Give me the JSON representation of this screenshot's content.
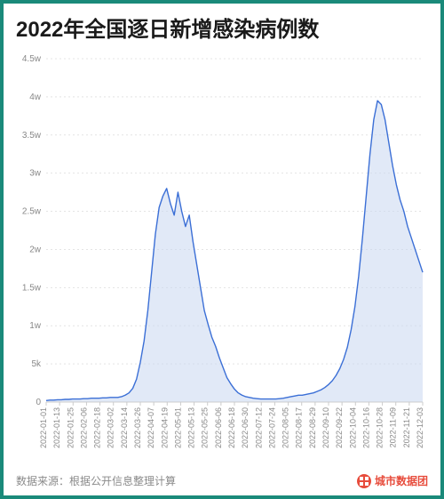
{
  "title": "2022年全国逐日新增感染病例数",
  "source_label": "数据来源：根据公开信息整理计算",
  "brand_label": "城市数据团",
  "brand_color": "#e74c3c",
  "chart": {
    "type": "area-line",
    "line_color": "#3b6fd6",
    "fill_color": "#c8d7f0",
    "fill_opacity": 0.55,
    "line_width": 1.4,
    "background_color": "#ffffff",
    "grid_color": "#e4e4e4",
    "axis_color": "#cccccc",
    "tick_font_color": "#888888",
    "y_axis": {
      "min": 0,
      "max": 45000,
      "ticks": [
        0,
        5000,
        10000,
        15000,
        20000,
        25000,
        30000,
        35000,
        40000,
        45000
      ],
      "tick_labels": [
        "0",
        "5k",
        "1w",
        "1.5w",
        "2w",
        "2.5w",
        "3w",
        "3.5w",
        "4w",
        "4.5w"
      ]
    },
    "x_axis": {
      "tick_labels": [
        "2022-01-01",
        "2022-01-13",
        "2022-01-25",
        "2022-02-06",
        "2022-02-18",
        "2022-03-02",
        "2022-03-14",
        "2022-03-26",
        "2022-04-07",
        "2022-04-19",
        "2022-05-01",
        "2022-05-13",
        "2022-05-25",
        "2022-06-06",
        "2022-06-18",
        "2022-06-30",
        "2022-07-12",
        "2022-07-24",
        "2022-08-05",
        "2022-08-17",
        "2022-08-29",
        "2022-09-10",
        "2022-09-22",
        "2022-10-04",
        "2022-10-16",
        "2022-10-28",
        "2022-11-09",
        "2022-11-21",
        "2022-12-03"
      ]
    },
    "series": {
      "x_index": [
        0,
        1,
        2,
        3,
        4,
        5,
        6,
        7,
        8,
        9,
        10,
        11,
        12,
        13,
        14,
        15,
        16,
        17,
        18,
        19,
        20,
        21,
        22,
        23,
        24,
        25,
        26,
        27,
        28,
        29,
        30,
        31,
        32,
        33,
        34,
        35,
        36,
        37,
        38,
        39,
        40,
        41,
        42,
        43,
        44,
        45,
        46,
        47,
        48,
        49,
        50,
        51,
        52,
        53,
        54,
        55,
        56,
        57,
        58,
        59,
        60,
        61,
        62,
        63,
        64,
        65,
        66,
        67,
        68,
        69,
        70,
        71,
        72,
        73,
        74,
        75,
        76,
        77,
        78,
        79,
        80,
        81,
        82,
        83,
        84,
        85,
        86,
        87,
        88,
        89,
        90,
        91,
        92,
        93,
        94,
        95,
        96,
        97,
        98,
        99,
        100
      ],
      "y": [
        200,
        250,
        250,
        300,
        300,
        350,
        350,
        400,
        400,
        400,
        450,
        450,
        500,
        500,
        500,
        550,
        550,
        600,
        600,
        600,
        700,
        900,
        1200,
        1800,
        3000,
        5200,
        8000,
        12000,
        17000,
        22000,
        25500,
        27000,
        28000,
        26000,
        24500,
        27500,
        25000,
        23000,
        24500,
        21000,
        18000,
        15000,
        12000,
        10200,
        8500,
        7300,
        5800,
        4500,
        3200,
        2400,
        1700,
        1200,
        900,
        700,
        600,
        500,
        450,
        400,
        400,
        400,
        400,
        400,
        450,
        500,
        600,
        700,
        800,
        900,
        900,
        1000,
        1100,
        1200,
        1400,
        1600,
        1900,
        2300,
        2800,
        3500,
        4400,
        5600,
        7200,
        9500,
        12500,
        16500,
        21500,
        27000,
        32500,
        37000,
        39500,
        39000,
        37000,
        34000,
        31000,
        28500,
        26500,
        25000,
        23000,
        21500,
        20000,
        18500,
        17000
      ]
    }
  }
}
